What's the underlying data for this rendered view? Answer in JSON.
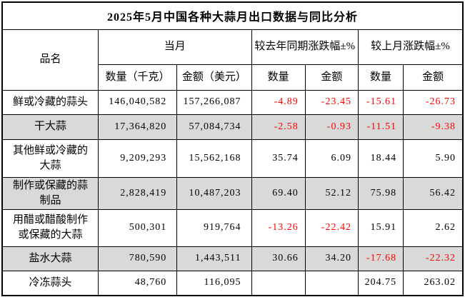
{
  "title": "2025年5月中国各种大蒜月出口数据与同比分析",
  "header": {
    "product": "品名",
    "current_month": "当月",
    "yoy_change": "较去年同期涨跌幅±%",
    "mom_change": "较上月涨跌幅±%",
    "qty_kg": "数量（千克）",
    "amount_usd": "金额（美元）",
    "qty": "数量",
    "amount": "金额"
  },
  "rows": [
    {
      "name": "鲜或冷藏的蒜头",
      "qty": "146,040,582",
      "amount": "157,266,087",
      "yoy_qty": "-4.89",
      "yoy_amount": "-23.45",
      "mom_qty": "-15.61",
      "mom_amount": "-26.73"
    },
    {
      "name": "干大蒜",
      "qty": "17,364,820",
      "amount": "57,084,734",
      "yoy_qty": "-2.58",
      "yoy_amount": "-0.93",
      "mom_qty": "-11.51",
      "mom_amount": "-9.38"
    },
    {
      "name": "其他鲜或冷藏的大蒜",
      "qty": "9,209,293",
      "amount": "15,562,168",
      "yoy_qty": "35.74",
      "yoy_amount": "6.09",
      "mom_qty": "18.44",
      "mom_amount": "5.90"
    },
    {
      "name": "制作或保藏的蒜制品",
      "qty": "2,828,419",
      "amount": "10,487,203",
      "yoy_qty": "69.40",
      "yoy_amount": "52.12",
      "mom_qty": "75.98",
      "mom_amount": "56.42"
    },
    {
      "name": "用醋或醋酸制作或保藏的大蒜",
      "qty": "500,301",
      "amount": "919,764",
      "yoy_qty": "-13.26",
      "yoy_amount": "-22.42",
      "mom_qty": "15.91",
      "mom_amount": "2.62"
    },
    {
      "name": "盐水大蒜",
      "qty": "780,590",
      "amount": "1,443,511",
      "yoy_qty": "30.66",
      "yoy_amount": "34.20",
      "mom_qty": "-17.68",
      "mom_amount": "-22.32"
    },
    {
      "name": "冷冻蒜头",
      "qty": "48,760",
      "amount": "116,095",
      "yoy_qty": "",
      "yoy_amount": "",
      "mom_qty": "204.75",
      "mom_amount": "263.02"
    }
  ],
  "colors": {
    "negative_text": "#ff0000",
    "positive_text": "#000000",
    "alt_row_bg": "#d9d9d9",
    "border": "#000000",
    "background": "#ffffff"
  }
}
